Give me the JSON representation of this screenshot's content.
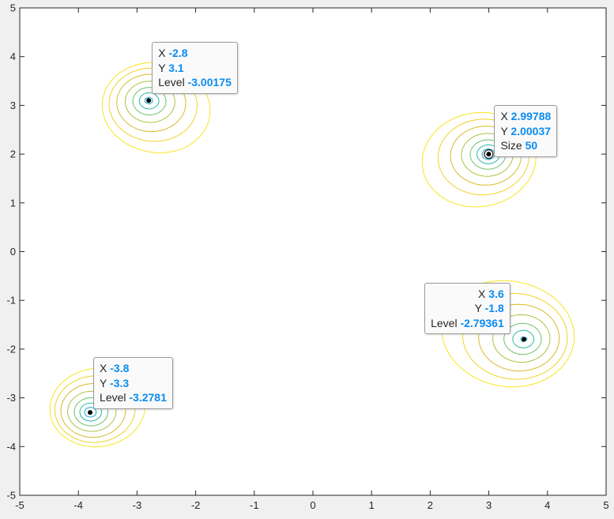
{
  "chart_data": {
    "type": "contour",
    "title": "",
    "xlabel": "",
    "ylabel": "",
    "xlim": [
      -5,
      5
    ],
    "ylim": [
      -5,
      5
    ],
    "x_ticks": [
      "-5",
      "-4",
      "-3",
      "-2",
      "-1",
      "0",
      "1",
      "2",
      "3",
      "4",
      "5"
    ],
    "y_ticks": [
      "5",
      "4",
      "3",
      "2",
      "1",
      "0",
      "-1",
      "-2",
      "-3",
      "-4",
      "-5"
    ],
    "grid": false,
    "colormap": "parula",
    "minima": [
      {
        "x": -2.8,
        "y": 3.1
      },
      {
        "x": 2.99788,
        "y": 2.00037
      },
      {
        "x": 3.6,
        "y": -1.8
      },
      {
        "x": -3.8,
        "y": -3.3
      }
    ],
    "datatips": [
      {
        "rows": [
          {
            "label": "X",
            "value": "-2.8"
          },
          {
            "label": "Y",
            "value": "3.1"
          },
          {
            "label": "Level",
            "value": "-3.00175"
          }
        ],
        "x": -2.8,
        "y": 3.1,
        "align": "left"
      },
      {
        "rows": [
          {
            "label": "X",
            "value": "2.99788"
          },
          {
            "label": "Y",
            "value": "2.00037"
          },
          {
            "label": "Size",
            "value": "50"
          }
        ],
        "x": 2.99788,
        "y": 2.00037,
        "align": "left"
      },
      {
        "rows": [
          {
            "label": "X",
            "value": "3.6"
          },
          {
            "label": "Y",
            "value": "-1.8"
          },
          {
            "label": "Level",
            "value": "-2.79361"
          }
        ],
        "x": 3.6,
        "y": -1.8,
        "align": "right"
      },
      {
        "rows": [
          {
            "label": "X",
            "value": "-3.8"
          },
          {
            "label": "Y",
            "value": "-3.3"
          },
          {
            "label": "Level",
            "value": "-3.2781"
          }
        ],
        "x": -3.8,
        "y": -3.3,
        "align": "left"
      }
    ]
  },
  "colors": {
    "axes_bg": "#ffffff",
    "figure_bg": "#f0f0f0",
    "datatip_value": "#0b8cf0",
    "contour_levels": [
      "#2a5fd8",
      "#1f8de0",
      "#16a8c8",
      "#2cbaa0",
      "#6cc26a",
      "#a9c340",
      "#d8ba2a",
      "#f0d224",
      "#f7e51f"
    ]
  }
}
